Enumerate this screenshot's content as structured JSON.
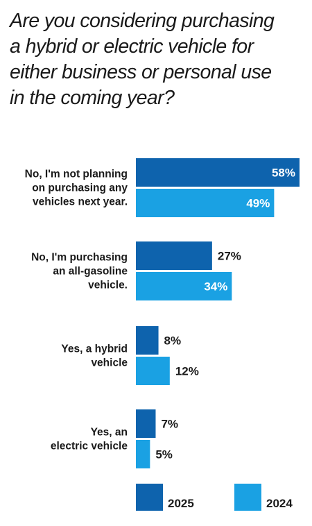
{
  "chart_data": {
    "type": "bar",
    "orientation": "horizontal",
    "title_lines": [
      "Are you considering purchasing",
      "a hybrid or electric vehicle for",
      "either business or personal use",
      "in the coming year?"
    ],
    "categories": [
      [
        "No, I'm not planning",
        "on purchasing any",
        "vehicles next year."
      ],
      [
        "No, I'm purchasing",
        "an all-gasoline",
        "vehicle."
      ],
      [
        "Yes, a hybrid",
        "vehicle"
      ],
      [
        "Yes, an",
        "electric vehicle"
      ]
    ],
    "series": [
      {
        "name": "2025",
        "color": "#0e63ad",
        "values": [
          58,
          27,
          8,
          7
        ],
        "labels": [
          "58%",
          "27%",
          "8%",
          "7%"
        ]
      },
      {
        "name": "2024",
        "color": "#1aa1e3",
        "values": [
          49,
          34,
          12,
          5
        ],
        "labels": [
          "49%",
          "34%",
          "12%",
          "5%"
        ]
      }
    ],
    "xlim": [
      0,
      58
    ],
    "legend_position": "bottom",
    "grid": false
  }
}
